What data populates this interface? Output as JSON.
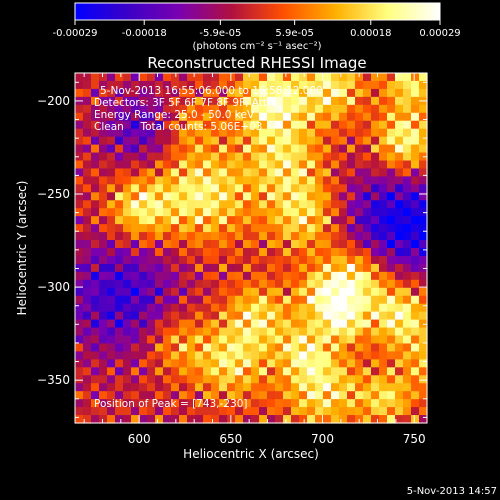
{
  "colorbar": {
    "ticks": [
      "-0.00029",
      "-0.00018",
      "-5.9e-05",
      "5.9e-05",
      "0.00018",
      "0.00029"
    ],
    "tick_values": [
      -0.00029,
      -0.00018,
      -5.9e-05,
      5.9e-05,
      0.00018,
      0.00029
    ],
    "unit_label": "(photons cm⁻² s⁻¹ asec⁻²)",
    "colors": [
      "#0000ff",
      "#3a00c8",
      "#7a00b0",
      "#b01040",
      "#ff5000",
      "#ffb000",
      "#ffff80",
      "#ffffff"
    ]
  },
  "timestamp": "5-Nov-2013 14:57",
  "chart_data": {
    "type": "heatmap",
    "title": "Reconstructed RHESSI Image",
    "xlabel": "Heliocentric X (arcsec)",
    "ylabel": "Heliocentric Y (arcsec)",
    "xlim": [
      565,
      757
    ],
    "ylim": [
      -373,
      -185
    ],
    "x_ticks": [
      600,
      650,
      700,
      750
    ],
    "y_ticks": [
      -200,
      -250,
      -300,
      -350
    ],
    "annotations": {
      "time_range": "5-Nov-2013 16:55:06.000 to 16:58:12.000",
      "detectors": "Detectors: 3F 5F 6F 7F 8F 9F, Att 0",
      "energy_range": "Energy Range: 25.0 - 50.0 keV",
      "method": "Clean     Total counts: 5.06E+03",
      "peak": "Position of Peak = [743,-230]"
    },
    "peak": [
      743,
      -230
    ]
  }
}
